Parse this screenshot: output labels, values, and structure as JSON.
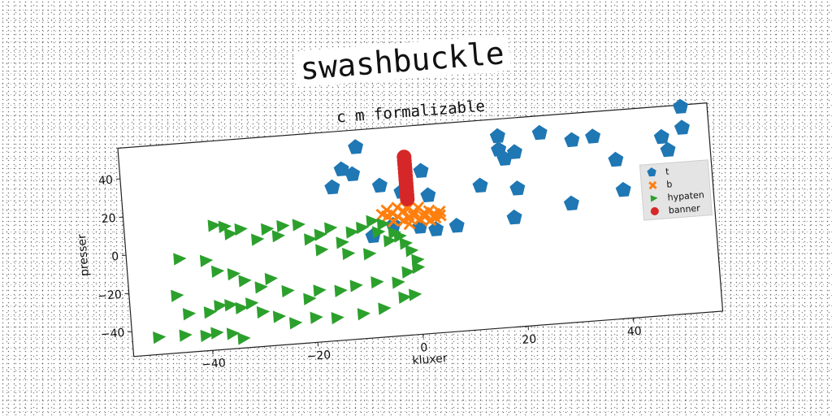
{
  "figure": {
    "title": "swashbuckle"
  },
  "chart_data": {
    "type": "scatter",
    "title": "c m formalizable",
    "xlabel": "kluxer",
    "ylabel": "presser",
    "xlim": [
      -55,
      57
    ],
    "ylim": [
      -53,
      56
    ],
    "xticks": [
      -40,
      -20,
      0,
      20,
      40
    ],
    "yticks": [
      -40,
      -20,
      0,
      20,
      40
    ],
    "xtick_labels": [
      "−40",
      "−20",
      "0",
      "20",
      "40"
    ],
    "ytick_labels": [
      "−40",
      "−20",
      "0",
      "20",
      "40"
    ],
    "grid": false,
    "legend_position": "center-right",
    "series": [
      {
        "name": "t",
        "marker": "pentagon",
        "color": "#1f77b4",
        "points": [
          [
            -6,
            58
          ],
          [
            1,
            58
          ],
          [
            -10,
            47
          ],
          [
            -13,
            36
          ],
          [
            -15,
            27
          ],
          [
            -11,
            33
          ],
          [
            -6,
            26
          ],
          [
            2,
            32
          ],
          [
            3,
            19
          ],
          [
            -8,
            0
          ],
          [
            -4,
            5
          ],
          [
            1,
            3
          ],
          [
            4,
            1
          ],
          [
            8,
            2
          ],
          [
            13,
            22
          ],
          [
            17,
            47
          ],
          [
            17,
            40
          ],
          [
            18,
            35
          ],
          [
            20,
            38
          ],
          [
            20,
            19
          ],
          [
            19,
            4
          ],
          [
            25,
            47
          ],
          [
            28,
            64
          ],
          [
            31,
            60
          ],
          [
            31,
            42
          ],
          [
            35,
            43
          ],
          [
            39,
            30
          ],
          [
            40,
            14
          ],
          [
            48,
            40
          ],
          [
            49,
            33
          ],
          [
            51,
            61
          ],
          [
            52,
            55
          ],
          [
            52,
            44
          ],
          [
            30,
            9
          ],
          [
            -2,
            22
          ]
        ]
      },
      {
        "name": "b",
        "marker": "x",
        "color": "#ff7f0e",
        "points": [
          [
            -5,
            13
          ],
          [
            -4,
            11
          ],
          [
            -3,
            14
          ],
          [
            -2,
            12
          ],
          [
            -1,
            13
          ],
          [
            0,
            11
          ],
          [
            1,
            13
          ],
          [
            2,
            10
          ],
          [
            3,
            11
          ],
          [
            4,
            9
          ],
          [
            5,
            10
          ],
          [
            -5,
            10
          ],
          [
            -3,
            9
          ],
          [
            -1,
            8
          ],
          [
            0,
            9
          ],
          [
            2,
            8
          ],
          [
            4,
            7
          ],
          [
            -4,
            7
          ],
          [
            -2,
            7
          ],
          [
            1,
            7
          ],
          [
            3,
            6
          ],
          [
            -1,
            5
          ],
          [
            5,
            8
          ],
          [
            -6,
            11
          ]
        ]
      },
      {
        "name": "hypaten",
        "marker": "triangle-right",
        "color": "#2ca02c",
        "points": [
          [
            -38,
            12
          ],
          [
            -36,
            11
          ],
          [
            -35,
            7
          ],
          [
            -33,
            9
          ],
          [
            -28,
            8
          ],
          [
            -25,
            9
          ],
          [
            -22,
            9
          ],
          [
            -30,
            3
          ],
          [
            -26,
            4
          ],
          [
            -20,
            1
          ],
          [
            -18,
            3
          ],
          [
            -16,
            6
          ],
          [
            -14,
            -2
          ],
          [
            -12,
            3
          ],
          [
            -10,
            5
          ],
          [
            -8,
            8
          ],
          [
            -6,
            6
          ],
          [
            -7,
            2
          ],
          [
            -4,
            1
          ],
          [
            -3,
            -1
          ],
          [
            -5,
            -3
          ],
          [
            -18,
            -5
          ],
          [
            -13,
            -8
          ],
          [
            -9,
            -9
          ],
          [
            -2,
            -5
          ],
          [
            -1,
            -9
          ],
          [
            0,
            -14
          ],
          [
            -45,
            -4
          ],
          [
            -40,
            -6
          ],
          [
            -38,
            -12
          ],
          [
            -35,
            -14
          ],
          [
            -33,
            -18
          ],
          [
            -30,
            -22
          ],
          [
            -28,
            -18
          ],
          [
            -25,
            -25
          ],
          [
            -21,
            -30
          ],
          [
            -19,
            -26
          ],
          [
            -15,
            -27
          ],
          [
            -12,
            -25
          ],
          [
            -8,
            -24
          ],
          [
            -4,
            -25
          ],
          [
            -2,
            -20
          ],
          [
            0,
            -18
          ],
          [
            -46,
            -23
          ],
          [
            -44,
            -33
          ],
          [
            -40,
            -33
          ],
          [
            -38,
            -30
          ],
          [
            -36,
            -30
          ],
          [
            -34,
            -32
          ],
          [
            -32,
            -30
          ],
          [
            -30,
            -35
          ],
          [
            -27,
            -38
          ],
          [
            -24,
            -42
          ],
          [
            -20,
            -40
          ],
          [
            -16,
            -41
          ],
          [
            -11,
            -40
          ],
          [
            -7,
            -38
          ],
          [
            -3,
            -33
          ],
          [
            -1,
            -32
          ],
          [
            -50,
            -44
          ],
          [
            -45,
            -44
          ],
          [
            -41,
            -45
          ],
          [
            -39,
            -44
          ],
          [
            -36,
            -45
          ],
          [
            -34,
            -48
          ]
        ]
      },
      {
        "name": "banner",
        "marker": "circle",
        "color": "#d62728",
        "points": [
          [
            -1,
            18
          ],
          [
            -1,
            20
          ],
          [
            -1,
            22
          ],
          [
            -1,
            24
          ],
          [
            -1,
            26
          ],
          [
            -1,
            28
          ],
          [
            -1,
            30
          ],
          [
            -1,
            32
          ],
          [
            -1,
            34
          ],
          [
            -1,
            36
          ],
          [
            -1,
            38
          ],
          [
            -1,
            40
          ]
        ]
      }
    ]
  }
}
